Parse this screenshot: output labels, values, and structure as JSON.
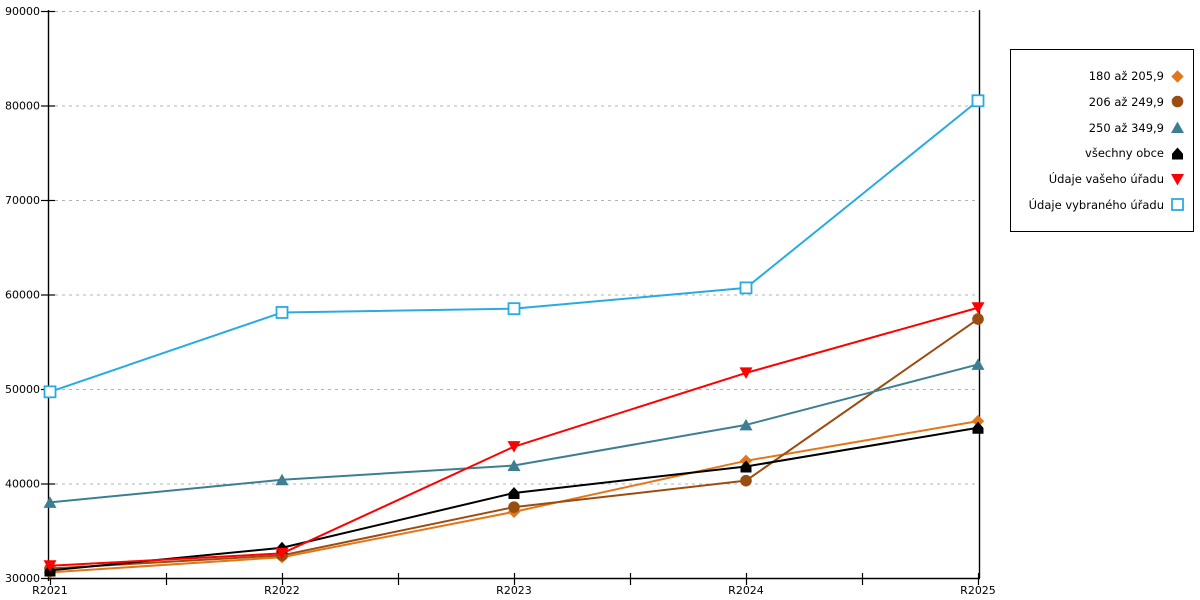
{
  "chart_data": {
    "type": "line",
    "title": "",
    "xlabel": "",
    "ylabel": "",
    "categories": [
      "R2021",
      "R2022",
      "R2023",
      "R2024",
      "R2025"
    ],
    "series": [
      {
        "name": "180 až 205,9",
        "marker": "diamond",
        "color": "#E2761B",
        "values": [
          30600,
          32200,
          37000,
          42400,
          46600
        ]
      },
      {
        "name": "206 až 249,9",
        "marker": "circle",
        "color": "#9A4D10",
        "values": [
          31000,
          32400,
          37500,
          40300,
          57400
        ]
      },
      {
        "name": "250 až 349,9",
        "marker": "triangle-up",
        "color": "#3D7F92",
        "values": [
          38000,
          40400,
          41900,
          46200,
          52600
        ]
      },
      {
        "name": "všechny obce",
        "marker": "pentagon",
        "color": "#000000",
        "values": [
          30800,
          33200,
          39000,
          41800,
          45900
        ]
      },
      {
        "name": "Údaje vašeho úřadu",
        "marker": "triangle-down",
        "color": "#FF0000",
        "values": [
          31300,
          32600,
          43900,
          51700,
          58600
        ]
      },
      {
        "name": "Údaje vybraného úřadu",
        "marker": "square-open",
        "color": "#29ABE2",
        "values": [
          49700,
          58100,
          58500,
          60700,
          80500
        ]
      }
    ],
    "ylim": [
      30000,
      90000
    ],
    "ytick_step": 10000,
    "yticks": [
      "30000",
      "40000",
      "50000",
      "60000",
      "70000",
      "80000",
      "90000"
    ],
    "grid": "horizontal dotted, minor x ticks between categories",
    "legend_position": "top-right outside plot",
    "axis_color": "#000000",
    "grid_color": "#B3B3B3",
    "background": "#FFFFFF"
  }
}
